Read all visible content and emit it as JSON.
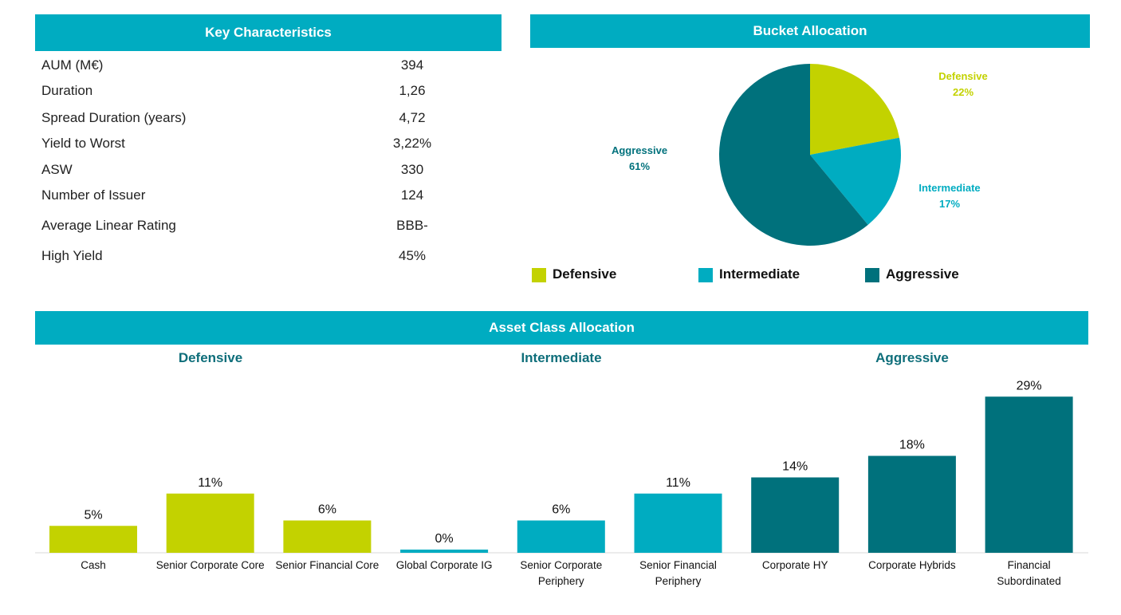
{
  "key_characteristics": {
    "title": "Key Characteristics",
    "rows": [
      {
        "label": "AUM (M€)",
        "value": "394"
      },
      {
        "label": "Duration",
        "value": "1,26"
      },
      {
        "label": "Spread Duration (years)",
        "value": "4,72"
      },
      {
        "label": "Yield to Worst",
        "value": "3,22%"
      },
      {
        "label": "ASW",
        "value": "330"
      },
      {
        "label": "Number of Issuer",
        "value": "124"
      },
      {
        "label": "Average Linear Rating",
        "value": "BBB-"
      },
      {
        "label": "High Yield",
        "value": "45%"
      }
    ]
  },
  "bucket_allocation": {
    "title": "Bucket Allocation",
    "legend": [
      {
        "label": "Defensive",
        "color": "#c3d200"
      },
      {
        "label": "Intermediate",
        "color": "#00acc1"
      },
      {
        "label": "Aggressive",
        "color": "#00717c"
      }
    ]
  },
  "asset_class_allocation": {
    "title": "Asset Class Allocation",
    "group_titles": [
      "Defensive",
      "Intermediate",
      "Aggressive"
    ]
  },
  "chart_data": [
    {
      "type": "pie",
      "title": "Bucket Allocation",
      "slices": [
        {
          "label": "Defensive",
          "value": 22,
          "display": "22%",
          "color": "#c3d200"
        },
        {
          "label": "Intermediate",
          "value": 17,
          "display": "17%",
          "color": "#00acc1"
        },
        {
          "label": "Aggressive",
          "value": 61,
          "display": "61%",
          "color": "#00717c"
        }
      ]
    },
    {
      "type": "bar",
      "title": "Asset Class Allocation",
      "categories": [
        [
          "Cash"
        ],
        [
          "Senior Corporate Core"
        ],
        [
          "Senior Financial Core"
        ],
        [
          "Global Corporate IG"
        ],
        [
          "Senior Corporate",
          "Periphery"
        ],
        [
          "Senior Financial",
          "Periphery"
        ],
        [
          "Corporate HY"
        ],
        [
          "Corporate Hybrids"
        ],
        [
          "Financial",
          "Subordinated"
        ]
      ],
      "values": [
        5,
        11,
        6,
        0,
        6,
        11,
        14,
        18,
        29
      ],
      "labels": [
        "5%",
        "11%",
        "6%",
        "0%",
        "6%",
        "11%",
        "14%",
        "18%",
        "29%"
      ],
      "colors": [
        "#c3d200",
        "#c3d200",
        "#c3d200",
        "#00acc1",
        "#00acc1",
        "#00acc1",
        "#00717c",
        "#00717c",
        "#00717c"
      ]
    }
  ]
}
